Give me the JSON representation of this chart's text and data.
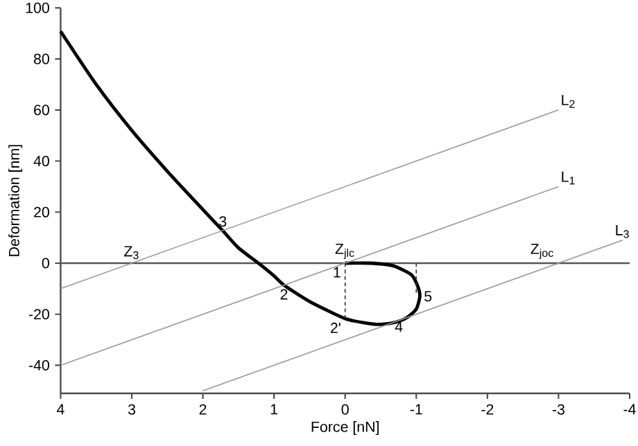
{
  "chart_data": {
    "type": "line",
    "xlabel": "Force [nN]",
    "ylabel": "Deformation [nm]",
    "xlim": [
      4,
      -4
    ],
    "ylim": [
      -51,
      100
    ],
    "xticks": [
      4,
      3,
      2,
      1,
      0,
      -1,
      -2,
      -3,
      -4
    ],
    "yticks": [
      -40,
      -20,
      0,
      20,
      40,
      60,
      80,
      100
    ],
    "grid": false,
    "legend": false,
    "marker": "none",
    "ref_lines": [
      {
        "axis": "y",
        "value": 0,
        "color": "#555555"
      }
    ],
    "series": [
      {
        "color": "#000000",
        "x": [
          4,
          3.5,
          3,
          2.5,
          2,
          1.72,
          1.5,
          1.22,
          1,
          0.86,
          0.5,
          0,
          -0.3,
          -0.5,
          -0.7,
          -0.87,
          -1,
          -1.05,
          -1.02,
          -0.93,
          -0.67,
          -0.35,
          0
        ],
        "values": [
          90.8,
          70,
          52,
          36,
          21,
          12.7,
          6,
          0,
          -5,
          -8.6,
          -15,
          -21.7,
          -23.5,
          -24,
          -23.2,
          -21.3,
          -18,
          -13,
          -9,
          -4.5,
          -1,
          0,
          0
        ]
      },
      {
        "name": "L$_{2}$",
        "color": "#999999",
        "x": [
          4,
          -3
        ],
        "values": [
          -10,
          60
        ]
      },
      {
        "name": "L$_{1}$",
        "color": "#999999",
        "x": [
          4,
          -3
        ],
        "values": [
          -40,
          30
        ]
      },
      {
        "name": "L$_{3}$",
        "color": "#999999",
        "x": [
          2,
          -3.9
        ],
        "values": [
          -50,
          9
        ]
      },
      {
        "color": "#333333",
        "line_style": "dashed",
        "x": [
          0,
          0
        ],
        "values": [
          0,
          -22
        ]
      },
      {
        "color": "#333333",
        "line_style": "dashed",
        "x": [
          -1,
          -1
        ],
        "values": [
          0,
          -12
        ]
      }
    ],
    "annotations": [
      {
        "text": "Z$_{3}$",
        "x": 3,
        "y": 0
      },
      {
        "text": "Z$_{jlc}$",
        "x": 0,
        "y": 0
      },
      {
        "text": "Z$_{joc}$",
        "x": -3,
        "y": 0
      },
      {
        "text": "3",
        "x": 1.72,
        "y": 12.7
      },
      {
        "text": "2",
        "x": 0.86,
        "y": -8.6
      },
      {
        "text": "1",
        "x": 0,
        "y": 0
      },
      {
        "text": "2'",
        "x": 0,
        "y": -21.7
      },
      {
        "text": "4",
        "x": -0.87,
        "y": -21.3
      },
      {
        "text": "5",
        "x": -1.05,
        "y": -13
      }
    ]
  }
}
